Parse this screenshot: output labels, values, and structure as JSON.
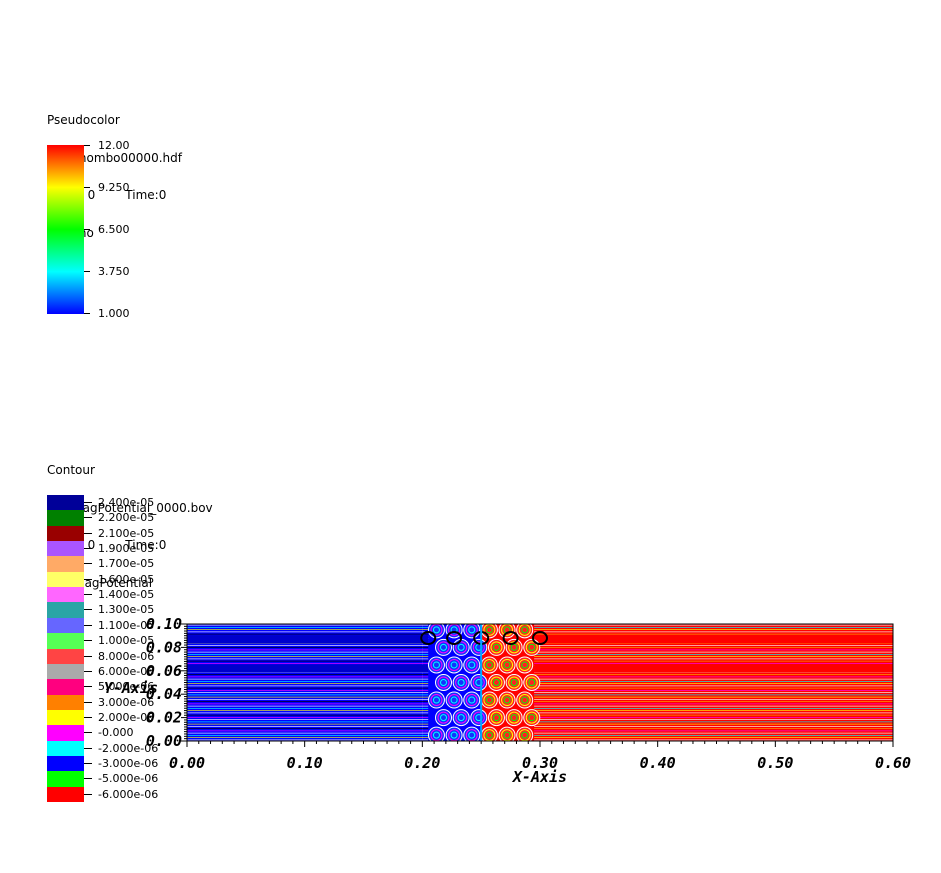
{
  "pseudocolor": {
    "title": "Pseudocolor",
    "db": "DB: chombo00000.hdf",
    "cycle": "Cycle: 0",
    "time": "Time:0",
    "var": "Var: rho",
    "ticks": [
      "12.00",
      "9.250",
      "6.500",
      "3.750",
      "1.000"
    ],
    "colors": [
      "#ff0000",
      "#ffff00",
      "#00ff00",
      "#00ffff",
      "#0000ff"
    ]
  },
  "contour": {
    "title": "Contour",
    "db": "DB: MagPotential_0000.bov",
    "cycle": "Cycle: 0",
    "time": "Time:0",
    "var": "Var: MagPotential",
    "levels": [
      {
        "label": "2.400e-05",
        "color": "#000099"
      },
      {
        "label": "2.200e-05",
        "color": "#008000"
      },
      {
        "label": "2.100e-05",
        "color": "#990000"
      },
      {
        "label": "1.900e-05",
        "color": "#aa55ff"
      },
      {
        "label": "1.700e-05",
        "color": "#ffaa66"
      },
      {
        "label": "1.600e-05",
        "color": "#ffff66"
      },
      {
        "label": "1.400e-05",
        "color": "#ff66ff"
      },
      {
        "label": "1.300e-05",
        "color": "#2aa5a5"
      },
      {
        "label": "1.100e-05",
        "color": "#6666ff"
      },
      {
        "label": "1.000e-05",
        "color": "#55ff55"
      },
      {
        "label": "8.000e-06",
        "color": "#ff4444"
      },
      {
        "label": "6.000e-06",
        "color": "#aaaaaa"
      },
      {
        "label": "5.000e-06",
        "color": "#ff007f"
      },
      {
        "label": "3.000e-06",
        "color": "#ff8000"
      },
      {
        "label": "2.000e-06",
        "color": "#ffff00"
      },
      {
        "label": "-0.000",
        "color": "#ff00ff"
      },
      {
        "label": "-2.000e-06",
        "color": "#00ffff"
      },
      {
        "label": "-3.000e-06",
        "color": "#0000ff"
      },
      {
        "label": "-5.000e-06",
        "color": "#00ff00"
      },
      {
        "label": "-6.000e-06",
        "color": "#ff0000"
      }
    ]
  },
  "chart_data": {
    "type": "heatmap",
    "xlabel": "X-Axis",
    "ylabel": "Y-Axis",
    "xlim": [
      0.0,
      0.6
    ],
    "ylim": [
      0.0,
      0.1
    ],
    "x_ticks": [
      "0.00",
      "0.10",
      "0.20",
      "0.30",
      "0.40",
      "0.50",
      "0.60"
    ],
    "y_ticks": [
      "0.00",
      "0.02",
      "0.04",
      "0.06",
      "0.08",
      "0.10"
    ],
    "regions": [
      {
        "x_range": [
          0.0,
          0.2
        ],
        "value": 1.0,
        "color": "#0000ff"
      },
      {
        "x_range": [
          0.2,
          0.25
        ],
        "value": 1.0,
        "color": "#0000ff"
      },
      {
        "x_range": [
          0.25,
          0.3
        ],
        "value": 12.0,
        "color": "#ff0000"
      },
      {
        "x_range": [
          0.3,
          0.6
        ],
        "value": 12.0,
        "color": "#ff0000"
      }
    ]
  }
}
